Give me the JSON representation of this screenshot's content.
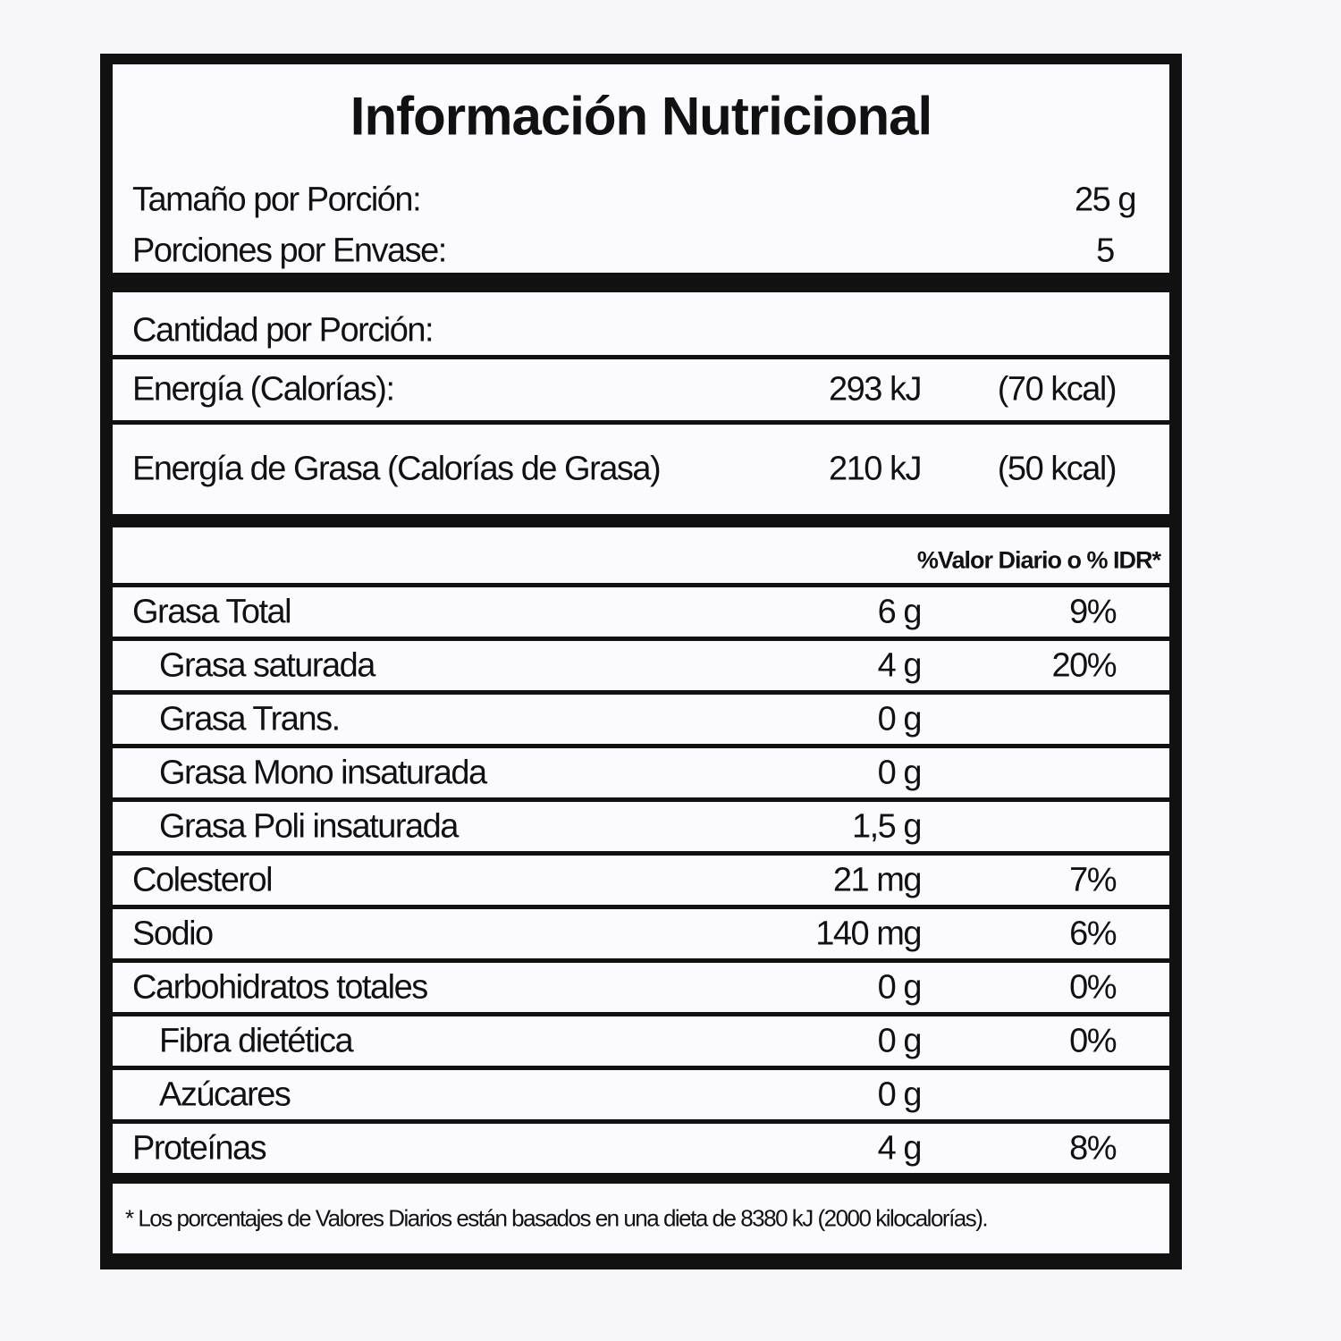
{
  "title": "Información Nutricional",
  "serving": [
    {
      "label": "Tamaño por Porción:",
      "value": "25 g"
    },
    {
      "label": "Porciones por Envase:",
      "value": "5"
    }
  ],
  "amount_header": "Cantidad por Porción:",
  "energy": [
    {
      "label": "Energía (Calorías):",
      "kj": "293 kJ",
      "kcal": "(70 kcal)"
    },
    {
      "label": "Energía de Grasa (Calorías de Grasa)",
      "kj": "210 kJ",
      "kcal": "(50 kcal)"
    }
  ],
  "dv_header": "%Valor Diario o % IDR*",
  "nutrients": [
    {
      "label": "Grasa Total",
      "amount": "6 g",
      "dv": "9%",
      "sub": [
        {
          "label": "Grasa saturada",
          "amount": "4 g",
          "dv": "20%"
        },
        {
          "label": "Grasa Trans.",
          "amount": "0 g"
        },
        {
          "label": "Grasa Mono insaturada",
          "amount": "0 g"
        },
        {
          "label": "Grasa Poli insaturada",
          "amount": "1,5 g"
        }
      ]
    },
    {
      "label": "Colesterol",
      "amount": "21 mg",
      "dv": "7%"
    },
    {
      "label": "Sodio",
      "amount": "140 mg",
      "dv": "6%"
    },
    {
      "label": "Carbohidratos totales",
      "amount": "0 g",
      "dv": "0%",
      "sub": [
        {
          "label": "Fibra dietética",
          "amount": "0 g",
          "dv": "0%"
        },
        {
          "label": "Azúcares",
          "amount": "0 g"
        }
      ]
    },
    {
      "label": "Proteínas",
      "amount": "4 g",
      "dv": "8%"
    }
  ],
  "footnote": "* Los porcentajes de Valores Diarios están basados en una dieta de 8380 kJ (2000 kilocalorías)."
}
